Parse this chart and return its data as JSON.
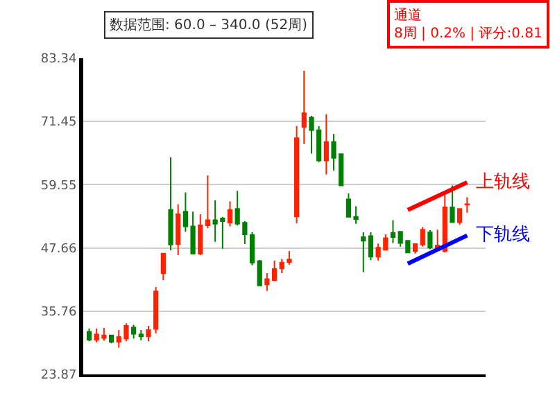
{
  "chart_data": {
    "type": "candlestick",
    "categories": [
      null,
      null,
      null,
      null,
      null,
      null,
      null,
      null,
      null,
      null,
      null,
      null,
      null,
      null,
      null,
      null,
      null,
      null,
      null,
      null,
      null,
      null,
      null,
      null,
      null,
      null,
      null,
      null,
      null,
      null,
      null,
      null,
      null,
      null,
      null,
      null,
      null,
      null,
      null,
      null,
      null,
      null,
      null,
      null,
      null,
      null,
      null,
      null,
      null,
      null,
      null,
      null
    ],
    "ohlc": [
      [
        31.9,
        32.5,
        30.1,
        30.4
      ],
      [
        30.4,
        32.5,
        29.9,
        31.4
      ],
      [
        30.7,
        32.6,
        30.2,
        31.2
      ],
      [
        31.2,
        31.3,
        29.7,
        30.0
      ],
      [
        30.0,
        32.2,
        28.9,
        30.9
      ],
      [
        30.6,
        33.5,
        30.1,
        33.0
      ],
      [
        32.7,
        33.2,
        30.6,
        31.5
      ],
      [
        31.4,
        32.2,
        30.3,
        31.0
      ],
      [
        31.0,
        33.0,
        30.1,
        32.2
      ],
      [
        32.4,
        40.3,
        31.6,
        39.5
      ],
      [
        42.9,
        46.6,
        41.6,
        46.6
      ],
      [
        54.8,
        64.7,
        47.2,
        48.3
      ],
      [
        48.4,
        55.9,
        46.3,
        54.0
      ],
      [
        54.5,
        58.1,
        50.7,
        51.7
      ],
      [
        51.7,
        54.5,
        46.6,
        46.6
      ],
      [
        46.6,
        54.0,
        46.3,
        51.9
      ],
      [
        51.9,
        61.3,
        51.4,
        52.9
      ],
      [
        52.9,
        56.6,
        48.8,
        52.2
      ],
      [
        53.2,
        53.5,
        47.5,
        52.7
      ],
      [
        52.4,
        56.4,
        51.7,
        54.8
      ],
      [
        55.0,
        58.4,
        51.9,
        52.2
      ],
      [
        52.4,
        52.7,
        48.4,
        50.2
      ],
      [
        50.1,
        50.6,
        44.4,
        44.9
      ],
      [
        45.2,
        45.4,
        40.6,
        40.6
      ],
      [
        40.8,
        42.9,
        39.6,
        41.8
      ],
      [
        41.6,
        45.3,
        41.4,
        43.7
      ],
      [
        43.8,
        45.6,
        42.9,
        44.9
      ],
      [
        45.0,
        47.1,
        44.5,
        45.5
      ],
      [
        53.6,
        70.6,
        52.3,
        68.3
      ],
      [
        70.4,
        81.0,
        67.2,
        73.0
      ],
      [
        72.2,
        72.5,
        65.4,
        69.8
      ],
      [
        69.8,
        70.6,
        63.8,
        64.1
      ],
      [
        64.1,
        72.8,
        61.5,
        67.6
      ],
      [
        67.6,
        69.1,
        62.2,
        64.6
      ],
      [
        65.3,
        65.3,
        59.4,
        59.4
      ],
      [
        56.8,
        57.9,
        53.5,
        53.5
      ],
      [
        53.5,
        55.5,
        52.2,
        53.1
      ],
      [
        49.7,
        50.6,
        43.1,
        49.0
      ],
      [
        49.9,
        50.6,
        45.4,
        46.0
      ],
      [
        46.0,
        48.5,
        45.3,
        47.7
      ],
      [
        47.3,
        50.2,
        47.2,
        49.5
      ],
      [
        50.5,
        52.9,
        48.6,
        49.7
      ],
      [
        50.7,
        50.7,
        47.9,
        48.6
      ],
      [
        49.0,
        49.0,
        46.8,
        46.8
      ],
      [
        47.1,
        48.4,
        46.6,
        48.4
      ],
      [
        48.3,
        51.6,
        47.9,
        51.1
      ],
      [
        50.6,
        51.0,
        47.4,
        47.7
      ],
      [
        47.3,
        51.1,
        47.1,
        48.1
      ],
      [
        47.1,
        57.6,
        46.8,
        55.3
      ],
      [
        55.3,
        59.4,
        52.5,
        52.5
      ],
      [
        52.5,
        55.0,
        52.0,
        55.0
      ],
      [
        55.8,
        57.2,
        54.3,
        55.9
      ]
    ],
    "colors": [
      "#008000",
      "#ff2200",
      "#ff2200",
      "#008000",
      "#ff2200",
      "#ff2200",
      "#008000",
      "#008000",
      "#ff2200",
      "#ff2200",
      "#ff2200",
      "#008000",
      "#ff2200",
      "#008000",
      "#008000",
      "#ff2200",
      "#ff2200",
      "#008000",
      "#008000",
      "#ff2200",
      "#008000",
      "#008000",
      "#008000",
      "#008000",
      "#ff2200",
      "#ff2200",
      "#ff2200",
      "#ff2200",
      "#ff2200",
      "#ff2200",
      "#008000",
      "#008000",
      "#ff2200",
      "#008000",
      "#008000",
      "#008000",
      "#008000",
      "#008000",
      "#008000",
      "#ff2200",
      "#ff2200",
      "#008000",
      "#008000",
      "#008000",
      "#ff2200",
      "#ff2200",
      "#008000",
      "#ff2200",
      "#ff2200",
      "#008000",
      "#ff2200",
      "#ff2200"
    ],
    "series": [
      {
        "type": "line",
        "name": "上轨线",
        "color": "#ff0000",
        "values": [
          null,
          null,
          null,
          null,
          null,
          null,
          null,
          null,
          null,
          null,
          null,
          null,
          null,
          null,
          null,
          null,
          null,
          null,
          null,
          null,
          null,
          null,
          null,
          null,
          null,
          null,
          null,
          null,
          null,
          null,
          null,
          null,
          null,
          null,
          null,
          null,
          null,
          null,
          null,
          null,
          null,
          null,
          null,
          54.8,
          null,
          null,
          null,
          null,
          null,
          null,
          null,
          60.0
        ]
      },
      {
        "type": "line",
        "name": "下轨线",
        "color": "#0000ff",
        "values": [
          null,
          null,
          null,
          null,
          null,
          null,
          null,
          null,
          null,
          null,
          null,
          null,
          null,
          null,
          null,
          null,
          null,
          null,
          null,
          null,
          null,
          null,
          null,
          null,
          null,
          null,
          null,
          null,
          null,
          null,
          null,
          null,
          null,
          null,
          null,
          null,
          null,
          null,
          null,
          null,
          null,
          null,
          null,
          44.7,
          null,
          null,
          null,
          null,
          null,
          null,
          null,
          50.0
        ]
      }
    ],
    "annotations": [
      "数据范围: 60.0 – 340.0 (52周)",
      "通道\n8周 | 0.2% | 评分:0.81"
    ],
    "ylim": [
      23.87,
      83.34
    ],
    "yticks": [
      23.87,
      35.76,
      47.66,
      59.55,
      71.45,
      83.34
    ],
    "grid": "y",
    "tick_labels": "y",
    "legend": false
  }
}
